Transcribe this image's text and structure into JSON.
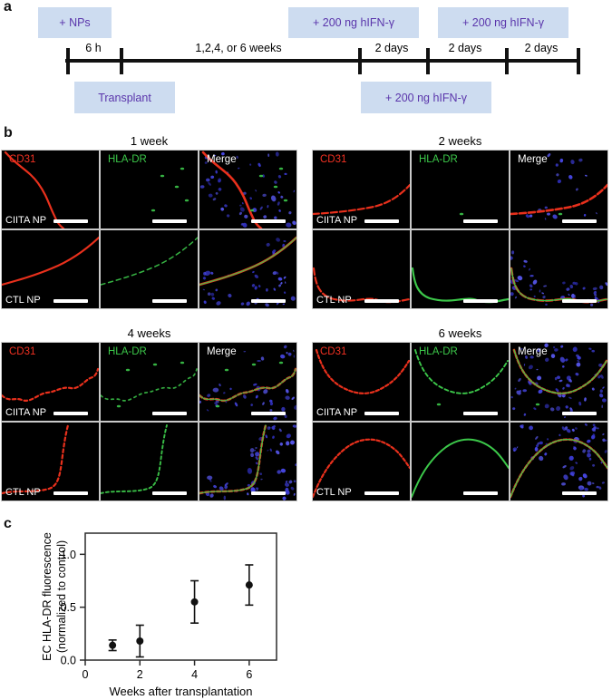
{
  "panels": {
    "a": "a",
    "b": "b",
    "c": "c"
  },
  "timeline": {
    "events_above": [
      "+ NPs",
      "+ 200 ng hIFN-γ",
      "+ 200 ng hIFN-γ"
    ],
    "events_below": [
      "Transplant",
      "+ 200 ng hIFN-γ"
    ],
    "intervals": [
      "6 h",
      "1,2,4, or 6 weeks",
      "2 days",
      "2 days",
      "2 days"
    ],
    "colors": {
      "event_box_fill": "#cddcf0",
      "event_text": "#5a35ab",
      "line": "#111111"
    }
  },
  "micrographs": {
    "group_titles": [
      "1 week",
      "2 weeks",
      "4 weeks",
      "6 weeks"
    ],
    "channel_labels": [
      "CD31",
      "HLA-DR",
      "Merge"
    ],
    "row_labels": [
      "CIITA NP",
      "CTL NP"
    ],
    "channel_colors": {
      "cd31": "#f23122",
      "hla_dr": "#3cc84a",
      "merge_label": "#ffffff",
      "nuclei": "#3c3ccf"
    }
  },
  "chart_data": {
    "type": "scatter",
    "x": [
      1,
      2,
      4,
      6
    ],
    "y": [
      0.14,
      0.18,
      0.55,
      0.71
    ],
    "yerr": [
      0.05,
      0.15,
      0.2,
      0.19
    ],
    "xlabel": "Weeks after transplantation",
    "ylabel": "EC HLA-DR fluorescence (normalized to control)",
    "ylabel_lines": [
      "EC HLA-DR fluorescence",
      "(normalized to control)"
    ],
    "xticks": [
      "0",
      "2",
      "4",
      "6"
    ],
    "xtick_values": [
      0,
      2,
      4,
      6
    ],
    "yticks": [
      "0.0",
      "0.5",
      "1.0"
    ],
    "ytick_values": [
      0,
      0.5,
      1.0
    ],
    "xlim": [
      0,
      7
    ],
    "ylim": [
      0,
      1.2
    ],
    "grid": false,
    "legend": null,
    "marker": "filled-circle-with-error-bars"
  }
}
